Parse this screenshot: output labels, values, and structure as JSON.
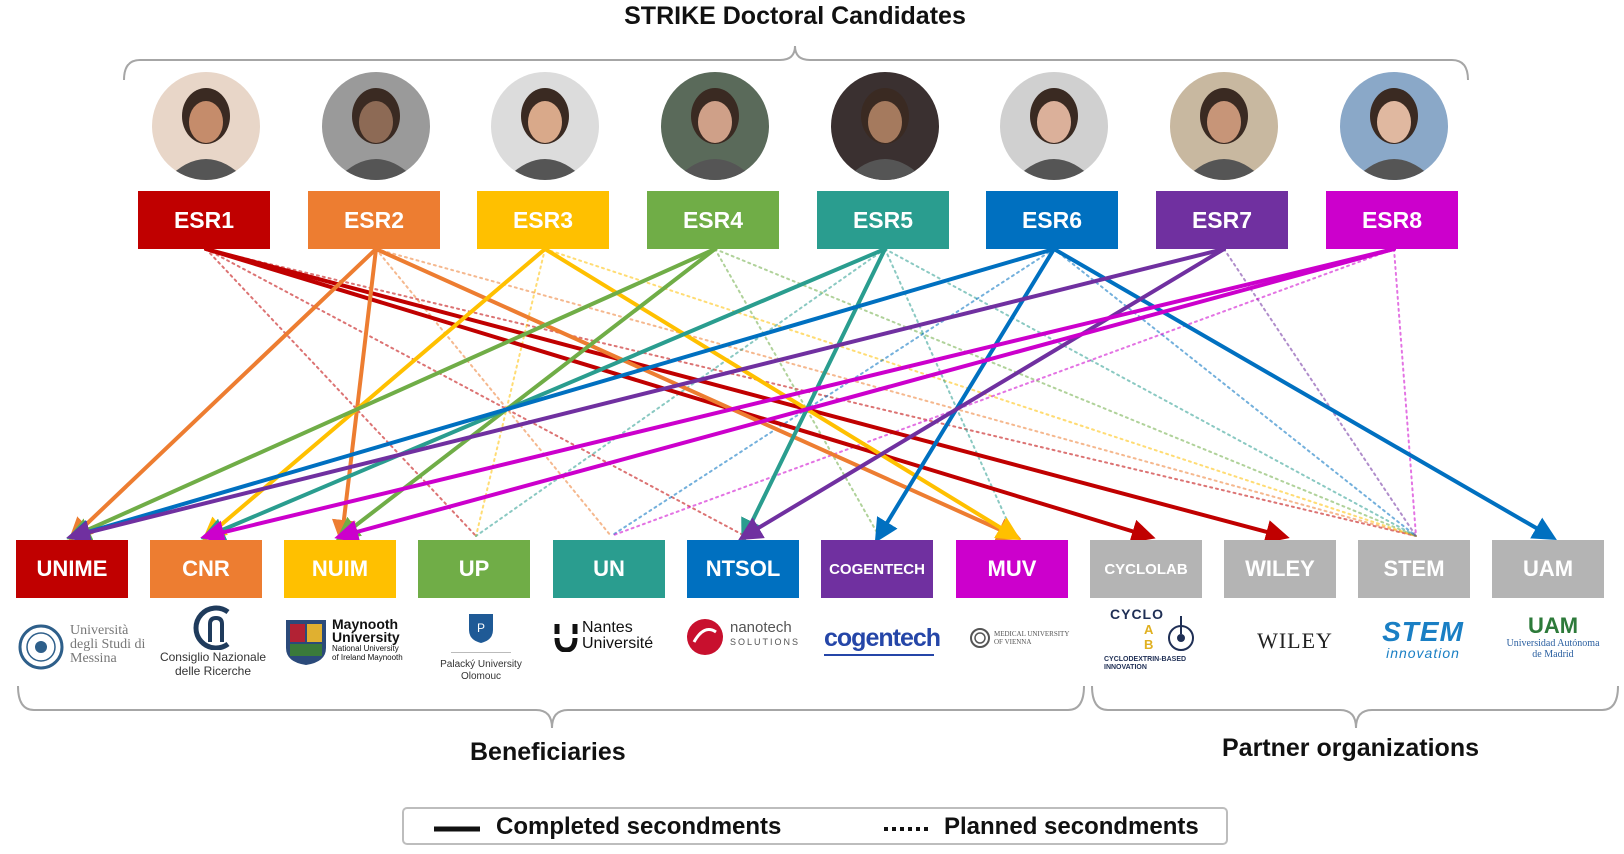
{
  "title": "STRIKE Doctoral Candidates",
  "candidates": [
    {
      "label": "ESR1",
      "color": "#c00000"
    },
    {
      "label": "ESR2",
      "color": "#ed7d31"
    },
    {
      "label": "ESR3",
      "color": "#ffc000"
    },
    {
      "label": "ESR4",
      "color": "#70ad47"
    },
    {
      "label": "ESR5",
      "color": "#2a9d8f"
    },
    {
      "label": "ESR6",
      "color": "#0070c0"
    },
    {
      "label": "ESR7",
      "color": "#7030a0"
    },
    {
      "label": "ESR8",
      "color": "#cc00cc"
    }
  ],
  "organizations": [
    {
      "label": "UNIME",
      "color": "#c00000",
      "logo_text": [
        "Università",
        "degli Studi di",
        "Messina"
      ]
    },
    {
      "label": "CNR",
      "color": "#ed7d31",
      "logo_text": [
        "Consiglio Nazionale",
        "delle Ricerche"
      ]
    },
    {
      "label": "NUIM",
      "color": "#ffc000",
      "logo_text": [
        "Maynooth",
        "University",
        "National University",
        "of Ireland Maynooth"
      ]
    },
    {
      "label": "UP",
      "color": "#70ad47",
      "logo_text": [
        "Palacký University",
        "Olomouc"
      ]
    },
    {
      "label": "UN",
      "color": "#2a9d8f",
      "logo_text": [
        "Nantes",
        "Université"
      ]
    },
    {
      "label": "NTSOL",
      "color": "#0070c0",
      "logo_text": [
        "nanotech",
        "SOLUTIONS"
      ]
    },
    {
      "label": "COGENTECH",
      "color": "#7030a0",
      "logo_text": [
        "cogentech"
      ]
    },
    {
      "label": "MUV",
      "color": "#cc00cc",
      "logo_text": [
        "MEDICAL UNIVERSITY",
        "OF VIENNA"
      ]
    },
    {
      "label": "CYCLOLAB",
      "color": "#b4b4b4",
      "logo_text": [
        "CYCLO",
        "A",
        "B",
        "CYCLODEXTRIN-BASED",
        "INNOVATION"
      ]
    },
    {
      "label": "WILEY",
      "color": "#b4b4b4",
      "logo_text": [
        "WILEY"
      ]
    },
    {
      "label": "STEM",
      "color": "#b4b4b4",
      "logo_text": [
        "STEM",
        "innovation"
      ]
    },
    {
      "label": "UAM",
      "color": "#b4b4b4",
      "logo_text": [
        "UAM",
        "Universidad Autónoma",
        "de Madrid"
      ]
    }
  ],
  "groups": {
    "beneficiaries": "Beneficiaries",
    "partners": "Partner organizations"
  },
  "legend": {
    "completed": "Completed secondments",
    "planned": "Planned secondments"
  },
  "secondments": {
    "completed": [
      {
        "from": "ESR1",
        "to": "CYCLOLAB"
      },
      {
        "from": "ESR1",
        "to": "WILEY"
      },
      {
        "from": "ESR2",
        "to": "UNIME"
      },
      {
        "from": "ESR2",
        "to": "NUIM"
      },
      {
        "from": "ESR2",
        "to": "MUV"
      },
      {
        "from": "ESR3",
        "to": "CNR"
      },
      {
        "from": "ESR3",
        "to": "MUV"
      },
      {
        "from": "ESR4",
        "to": "UNIME"
      },
      {
        "from": "ESR4",
        "to": "NUIM"
      },
      {
        "from": "ESR5",
        "to": "CNR"
      },
      {
        "from": "ESR5",
        "to": "NTSOL"
      },
      {
        "from": "ESR6",
        "to": "UNIME"
      },
      {
        "from": "ESR6",
        "to": "COGENTECH"
      },
      {
        "from": "ESR6",
        "to": "UAM"
      },
      {
        "from": "ESR7",
        "to": "UNIME"
      },
      {
        "from": "ESR7",
        "to": "NTSOL"
      },
      {
        "from": "ESR8",
        "to": "CNR"
      },
      {
        "from": "ESR8",
        "to": "NUIM"
      }
    ],
    "planned": [
      {
        "from": "ESR1",
        "to": "UP"
      },
      {
        "from": "ESR1",
        "to": "NTSOL"
      },
      {
        "from": "ESR1",
        "to": "STEM"
      },
      {
        "from": "ESR2",
        "to": "UN"
      },
      {
        "from": "ESR2",
        "to": "STEM"
      },
      {
        "from": "ESR3",
        "to": "UP"
      },
      {
        "from": "ESR3",
        "to": "STEM"
      },
      {
        "from": "ESR4",
        "to": "COGENTECH"
      },
      {
        "from": "ESR4",
        "to": "STEM"
      },
      {
        "from": "ESR5",
        "to": "UP"
      },
      {
        "from": "ESR5",
        "to": "MUV"
      },
      {
        "from": "ESR5",
        "to": "STEM"
      },
      {
        "from": "ESR6",
        "to": "UN"
      },
      {
        "from": "ESR6",
        "to": "STEM"
      },
      {
        "from": "ESR7",
        "to": "STEM"
      },
      {
        "from": "ESR8",
        "to": "UN"
      },
      {
        "from": "ESR8",
        "to": "STEM"
      }
    ]
  }
}
